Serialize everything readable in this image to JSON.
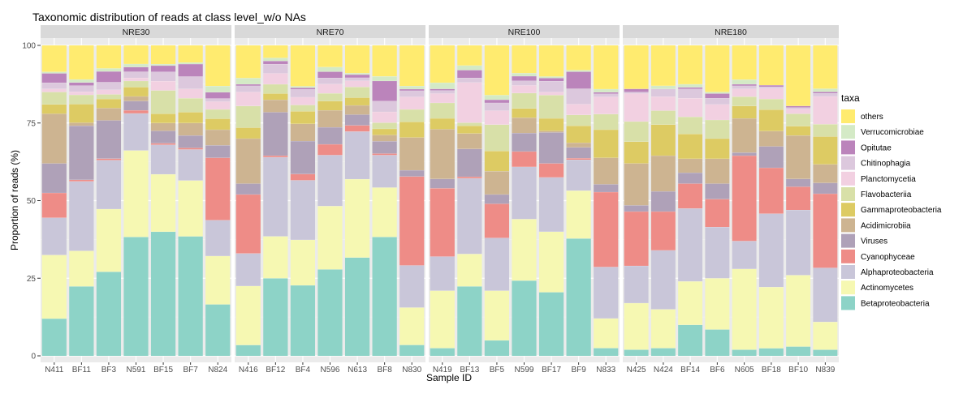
{
  "chart_data": {
    "type": "bar",
    "stacked": true,
    "title": "Taxonomic distribution of reads at class level_w/o NAs",
    "xlabel": "Sample ID",
    "ylabel": "Proportion of reads (%)",
    "ylim": [
      0,
      100
    ],
    "yticks": [
      "0",
      "25",
      "50",
      "75",
      "100"
    ],
    "legend_title": "taxa",
    "legend_position": "right",
    "grid": true,
    "taxa": [
      {
        "name": "others",
        "color": "#FFED6F"
      },
      {
        "name": "Verrucomicrobiae",
        "color": "#CCEBC5"
      },
      {
        "name": "Opitutae",
        "color": "#BC80BD"
      },
      {
        "name": "Chitinophagia",
        "color": "#D9D9D9"
      },
      {
        "name": "Planctomycetia",
        "color": "#FCCDE5"
      },
      {
        "name": "Flavobacteriia",
        "color": "#B3DE69"
      },
      {
        "name": "Gammaproteobacteria",
        "color": "#FDB462"
      },
      {
        "name": "Acidimicrobiia",
        "color": "#80B1D3"
      },
      {
        "name": "Viruses",
        "color": "#FB8072"
      },
      {
        "name": "Cyanophyceae",
        "color": "#BEBADA"
      },
      {
        "name": "Alphaproteobacteria",
        "color": "#FFFFB3"
      },
      {
        "name": "Actinomycetes",
        "color": "#8DD3C7"
      },
      {
        "name": "Betaproteobacteria",
        "color": "#8DD3C7"
      }
    ],
    "stack_order": [
      "Betaproteobacteria",
      "Actinomycetes",
      "Alphaproteobacteria",
      "Cyanophyceae",
      "Viruses",
      "Acidimicrobiia",
      "Gammaproteobacteria",
      "Flavobacteriia",
      "Planctomycetia",
      "Chitinophagia",
      "Opitutae",
      "Verrucomicrobiae",
      "others"
    ],
    "panels": [
      {
        "name": "NRE30",
        "samples": [
          {
            "id": "N411",
            "values": [
              12,
              20.5,
              12,
              8,
              9.5,
              16,
              3,
              4,
              1,
              2,
              3,
              0.5,
              8.5
            ]
          },
          {
            "id": "BF11",
            "values": [
              22.5,
              11.5,
              22.5,
              0.5,
              17.5,
              1,
              6,
              3,
              1,
              2,
              1,
              1,
              11
            ]
          },
          {
            "id": "BF3",
            "values": [
              27.5,
              20.5,
              16,
              0.5,
              12.5,
              4,
              3,
              1.5,
              1.5,
              2.5,
              3.5,
              1,
              7.5
            ]
          },
          {
            "id": "N591",
            "values": [
              38.5,
              28,
              12,
              1,
              3,
              1.5,
              3,
              2,
              1,
              2,
              1.5,
              1,
              6
            ]
          },
          {
            "id": "BF15",
            "values": [
              40,
              18.5,
              9.5,
              0.5,
              4,
              2.5,
              3,
              7.5,
              3,
              3,
              2,
              0.5,
              6
            ]
          },
          {
            "id": "BF7",
            "values": [
              38.5,
              18,
              10,
              0.5,
              4,
              4,
              3.5,
              4.5,
              3,
              4,
              4,
              0.5,
              5.5
            ]
          },
          {
            "id": "N824",
            "values": [
              16.5,
              15.5,
              11.5,
              20,
              4,
              5,
              3.5,
              3,
              2.5,
              1,
              2,
              2,
              13
            ]
          }
        ]
      },
      {
        "name": "NRE70",
        "samples": [
          {
            "id": "N416",
            "values": [
              3.5,
              19,
              10.5,
              19,
              3.5,
              14.5,
              3.5,
              7,
              4.5,
              2,
              0.5,
              2,
              10.5
            ]
          },
          {
            "id": "BF12",
            "values": [
              25,
              13.5,
              25.5,
              0.5,
              14,
              4,
              2,
              3,
              3.5,
              3,
              1,
              1,
              4
            ]
          },
          {
            "id": "BF4",
            "values": [
              22.5,
              14.5,
              19,
              2,
              10.5,
              5.5,
              4,
              2,
              2.5,
              2.5,
              0.5,
              0.5,
              13
            ]
          },
          {
            "id": "N596",
            "values": [
              28,
              20.5,
              16.5,
              3.5,
              5.5,
              5.5,
              3,
              2.5,
              3,
              2,
              2,
              1.5,
              7
            ]
          },
          {
            "id": "N613",
            "values": [
              32,
              25.5,
              15.5,
              2,
              3.5,
              3,
              2.5,
              3.5,
              2,
              1,
              1,
              0.5,
              9
            ]
          },
          {
            "id": "BF8",
            "values": [
              38.5,
              16,
              10.5,
              0.5,
              4,
              2,
              2,
              2,
              3.5,
              3.5,
              6.5,
              1.5,
              10
            ]
          },
          {
            "id": "N830",
            "values": [
              3.5,
              12,
              13.5,
              28.5,
              2,
              10.5,
              5,
              4,
              4,
              2,
              0.5,
              1,
              13
            ]
          }
        ]
      },
      {
        "name": "NRE100",
        "samples": [
          {
            "id": "N419",
            "values": [
              2.5,
              18.5,
              11,
              22,
              3,
              16,
              3.5,
              5,
              3,
              1,
              0.5,
              2,
              12
            ]
          },
          {
            "id": "BF13",
            "values": [
              22.5,
              10.5,
              24.5,
              0.5,
              9,
              5,
              2.5,
              1,
              13,
              1.5,
              2.5,
              1.5,
              6.5
            ]
          },
          {
            "id": "BF5",
            "values": [
              5,
              16,
              17,
              11,
              3,
              7.5,
              6.5,
              8.5,
              4.5,
              2.5,
              1,
              1.5,
              16
            ]
          },
          {
            "id": "N599",
            "values": [
              24.5,
              20,
              17,
              5,
              6,
              5,
              3,
              5,
              2.5,
              1.5,
              1.5,
              1,
              9
            ]
          },
          {
            "id": "BF17",
            "values": [
              20.5,
              19.5,
              17.5,
              4.5,
              10,
              0.5,
              4,
              7.5,
              1,
              3.5,
              1,
              0.5,
              10
            ]
          },
          {
            "id": "BF9",
            "values": [
              38,
              15.5,
              10,
              0.5,
              3.5,
              1.5,
              5.5,
              3.5,
              3.5,
              5,
              5.5,
              0.5,
              8
            ]
          },
          {
            "id": "N833",
            "values": [
              2.5,
              9.5,
              16.5,
              24,
              2.5,
              8.5,
              9,
              5,
              5.5,
              1,
              0.5,
              1,
              14
            ]
          }
        ]
      },
      {
        "name": "NRE180",
        "samples": [
          {
            "id": "N425",
            "values": [
              2,
              15,
              12,
              17.5,
              2,
              13.5,
              7,
              6.5,
              9,
              0.5,
              1,
              0,
              14
            ]
          },
          {
            "id": "N424",
            "values": [
              2.5,
              12.5,
              19,
              12.5,
              6.5,
              11.5,
              10,
              4.5,
              4.5,
              2.5,
              0,
              1,
              13
            ]
          },
          {
            "id": "BF14",
            "values": [
              10,
              14,
              23.5,
              8,
              3.5,
              4.5,
              8,
              5.5,
              6,
              3,
              0.5,
              1,
              12.5
            ]
          },
          {
            "id": "BF6",
            "values": [
              8.5,
              16.5,
              16.5,
              9,
              5,
              8,
              6.5,
              6,
              5,
              2,
              1.5,
              0.5,
              15
            ]
          },
          {
            "id": "N605",
            "values": [
              2,
              26,
              9,
              27.5,
              1,
              11,
              4,
              3,
              2.5,
              1,
              0.5,
              1.5,
              11
            ]
          },
          {
            "id": "BF18",
            "values": [
              2.5,
              20,
              24,
              15,
              7,
              5,
              7,
              3.5,
              3.5,
              0.5,
              0.5,
              0,
              13
            ]
          },
          {
            "id": "BF10",
            "values": [
              3,
              23,
              21,
              7.5,
              2.5,
              14,
              3,
              4,
              1.5,
              0.5,
              0.5,
              0,
              19.5
            ]
          },
          {
            "id": "N839",
            "values": [
              2,
              9,
              17.5,
              24,
              3.5,
              6,
              9,
              4,
              9,
              1,
              0.5,
              1,
              14
            ]
          }
        ]
      }
    ]
  }
}
